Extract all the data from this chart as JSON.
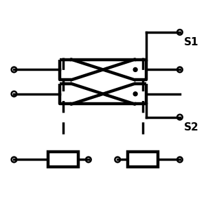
{
  "bg_color": "#ffffff",
  "line_color": "#000000",
  "lw_main": 2.5,
  "lw_thick": 3.2,
  "fig_width": 3.0,
  "fig_height": 3.0,
  "dpi": 100,
  "xlim": [
    0,
    10
  ],
  "ylim": [
    0,
    10
  ],
  "S1_label": "S1",
  "S2_label": "S2"
}
